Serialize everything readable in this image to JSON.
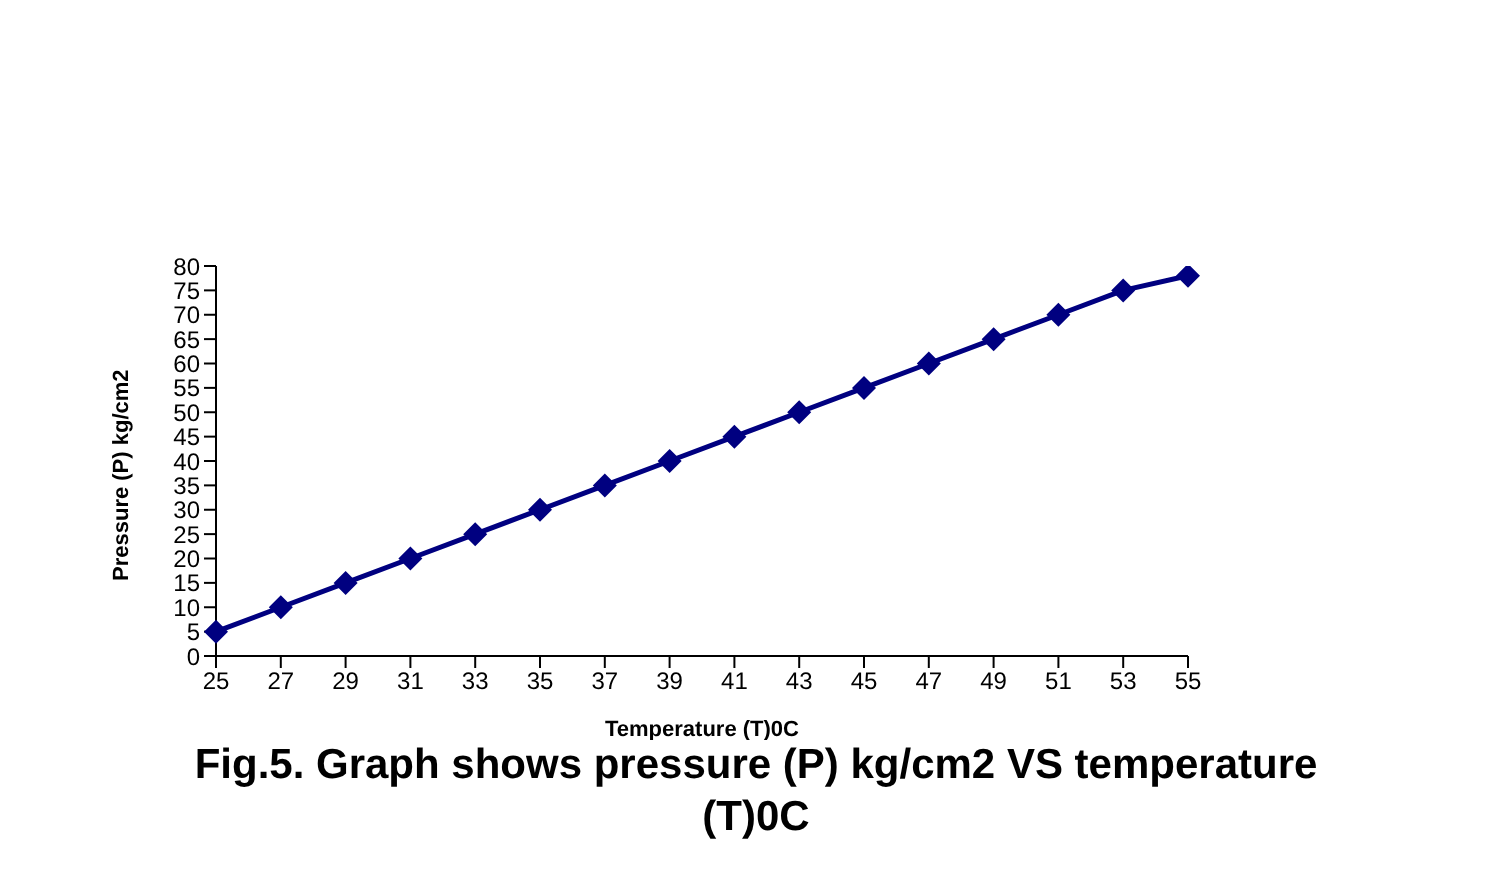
{
  "chart_data": {
    "type": "line",
    "xlabel": "Temperature (T)0C",
    "ylabel": "Pressure (P) kg/cm2",
    "categories": [
      "25",
      "27",
      "29",
      "31",
      "33",
      "35",
      "37",
      "39",
      "41",
      "43",
      "45",
      "47",
      "49",
      "51",
      "53",
      "55"
    ],
    "series": [
      {
        "color": "#000080",
        "values": [
          5,
          10,
          15,
          20,
          25,
          30,
          35,
          40,
          45,
          50,
          55,
          60,
          65,
          70,
          75,
          78
        ]
      }
    ],
    "ylim": [
      0,
      80
    ],
    "yticks": [
      0,
      5,
      10,
      15,
      20,
      25,
      30,
      35,
      40,
      45,
      50,
      55,
      60,
      65,
      70,
      75,
      80
    ],
    "marker": "diamond",
    "line_style": "solid",
    "grid": false,
    "legend": false,
    "annotations": [
      "Fig.5. Graph shows pressure (P) kg/cm2 VS temperature (T)0C"
    ]
  }
}
